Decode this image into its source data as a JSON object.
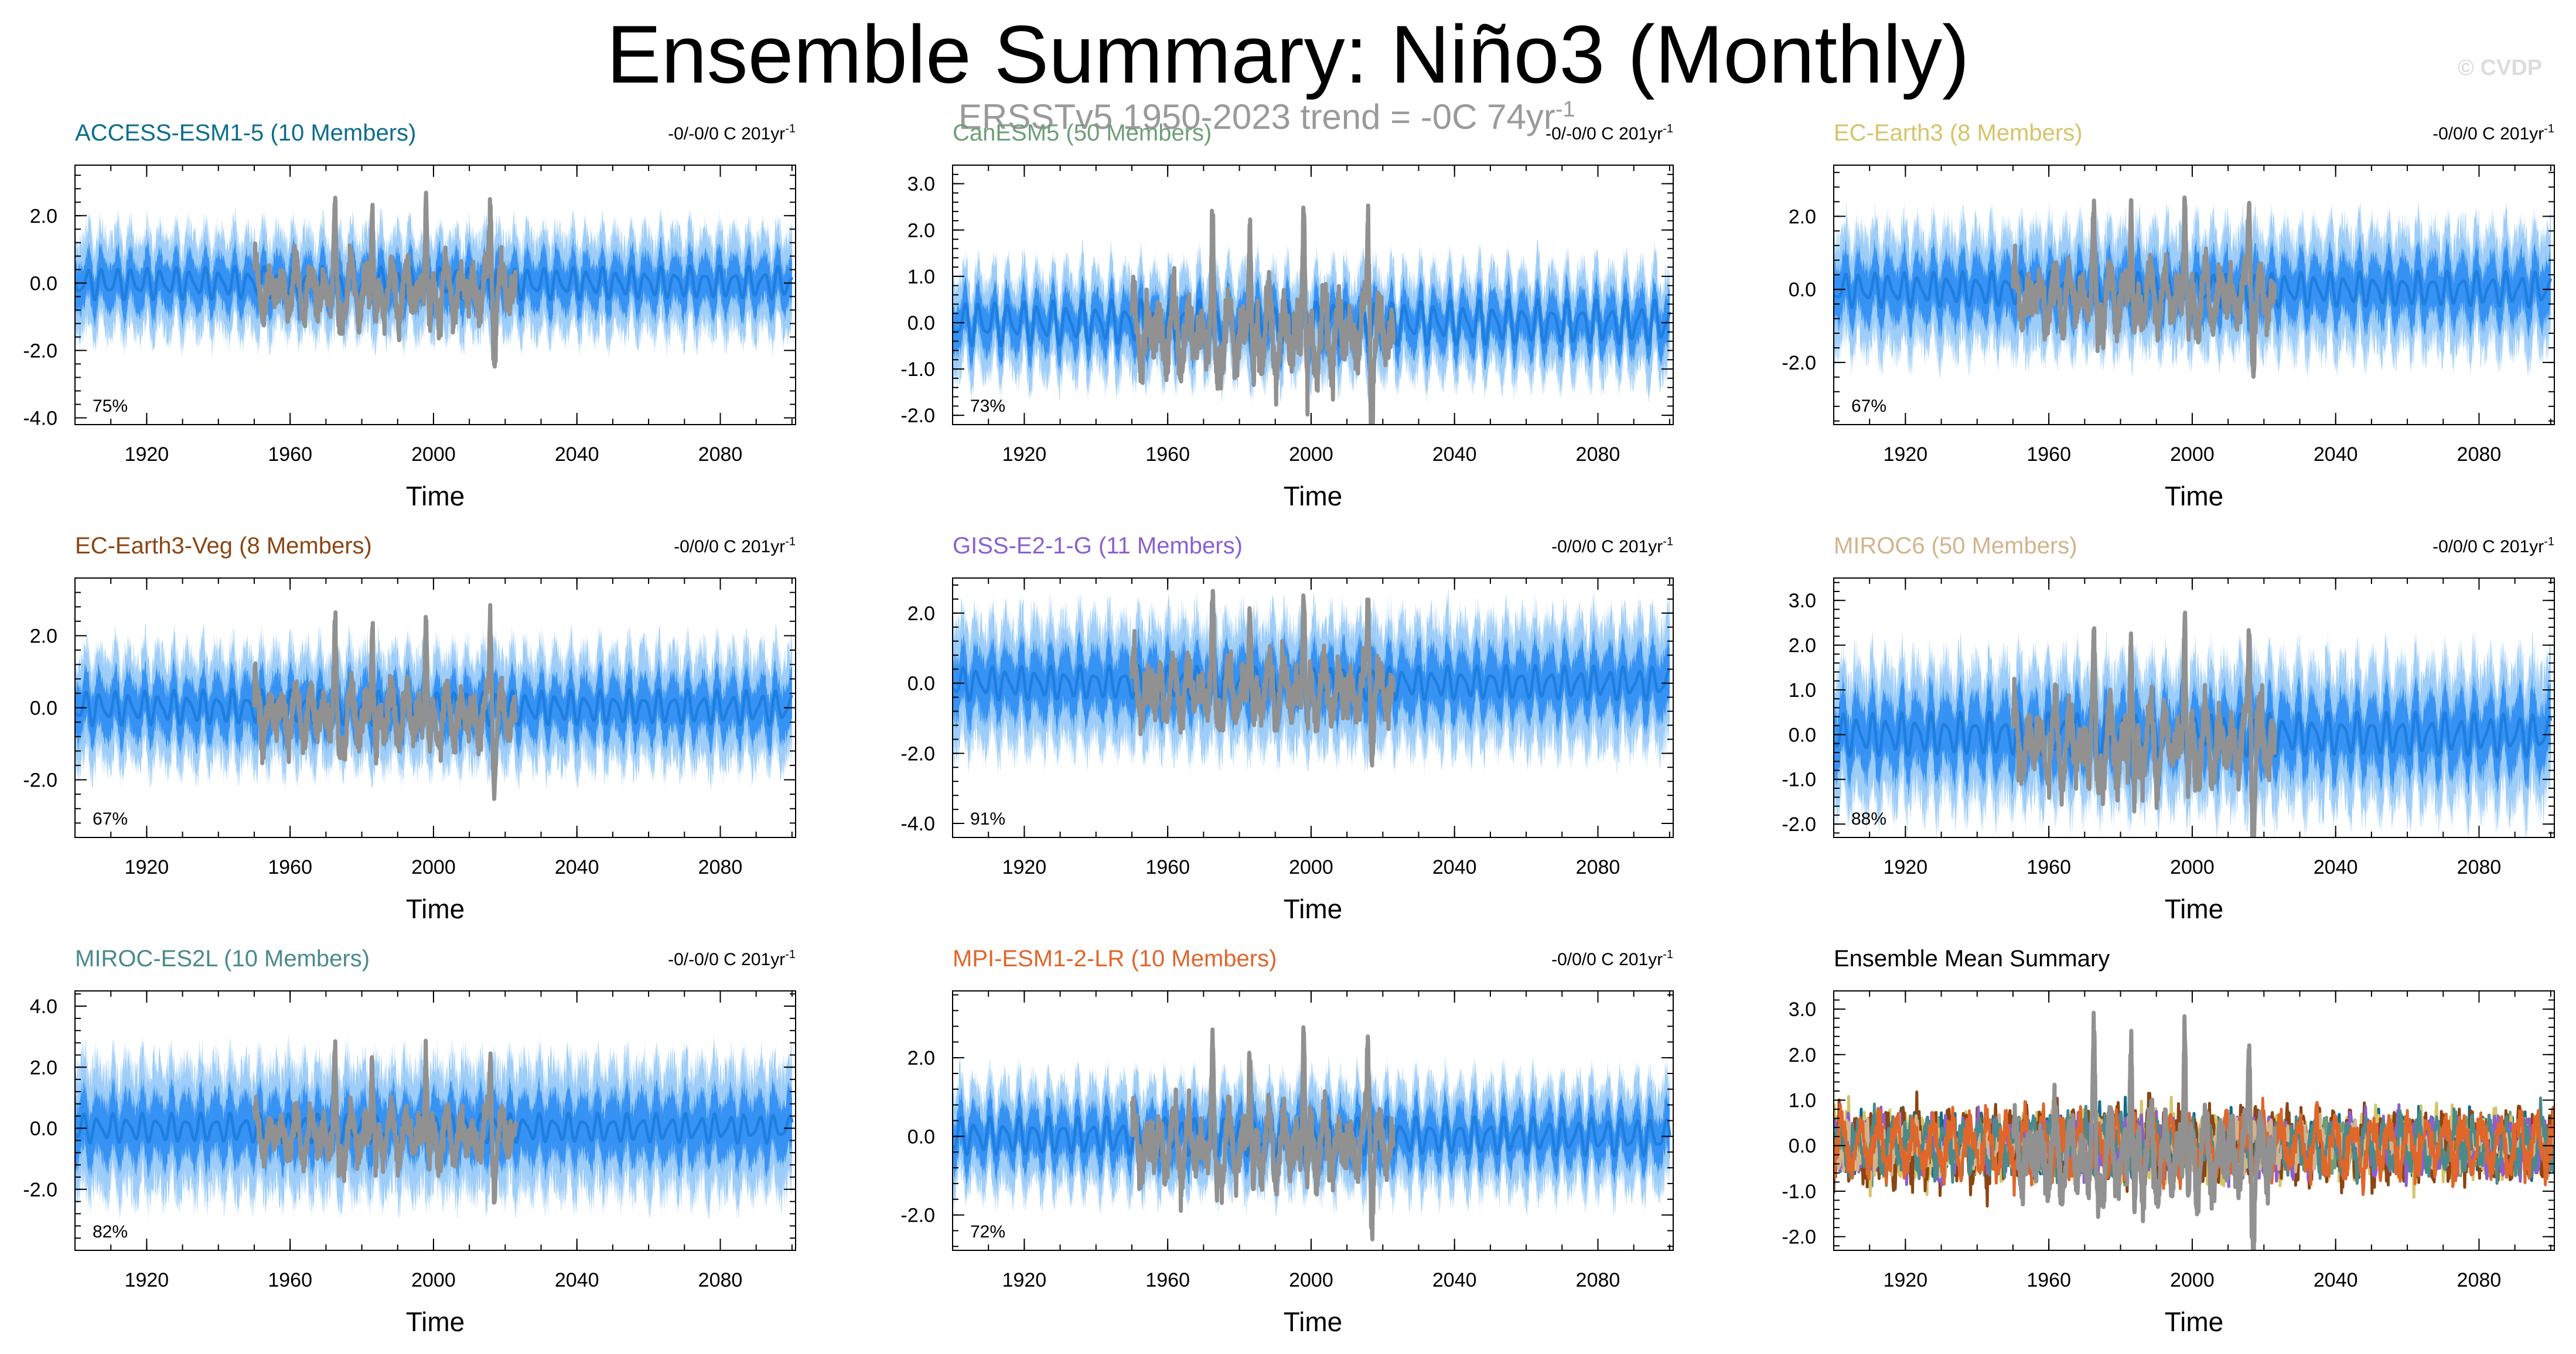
{
  "header": {
    "title": "Ensemble Summary: Niño3 (Monthly)",
    "subtitle_text": "ERSSTv5 1950-2023 trend = -0C 74yr",
    "subtitle_sup": "-1",
    "copyright": "© CVDP"
  },
  "colors": {
    "ensemble_spread": "#2b8cf2",
    "ensemble_spread_light": "#8cc4f7",
    "observations": "#919191",
    "axis": "#000000"
  },
  "chart_data": [
    {
      "type": "line",
      "title": "ACCESS-ESM1-5 (10 Members)",
      "title_color": "#0b6e8c",
      "trend_label": "-0/-0/0 C 201yr",
      "trend_sup": "-1",
      "percent_label": "75%",
      "xlabel": "Time",
      "xlim": [
        1900,
        2101
      ],
      "ylim": [
        -4.2,
        3.5
      ],
      "yticks": [
        -4.0,
        -2.0,
        0.0,
        2.0
      ],
      "ytick_labels": [
        "-4.0",
        "-2.0",
        "0.0",
        "2.0"
      ],
      "xticks": [
        1920,
        1960,
        2000,
        2040,
        2080
      ],
      "xtick_labels": [
        "1920",
        "1960",
        "2000",
        "2040",
        "2080"
      ],
      "series": [
        {
          "name": "Ensemble spread",
          "x_range": [
            1900,
            2100
          ],
          "mean": 0.0,
          "spread_amplitude": 1.8
        },
        {
          "name": "ERSSTv5 observations",
          "x_range": [
            1950,
            2023
          ],
          "peaks": [
            {
              "x": 1972.5,
              "value": 2.4
            },
            {
              "x": 1982.9,
              "value": 2.9
            },
            {
              "x": 1997.9,
              "value": 3.3
            },
            {
              "x": 2015.9,
              "value": 2.9
            }
          ]
        }
      ]
    },
    {
      "type": "line",
      "title": "CanESM5 (50 Members)",
      "title_color": "#6e9e78",
      "trend_label": "-0/-0/0 C 201yr",
      "trend_sup": "-1",
      "percent_label": "73%",
      "xlabel": "Time",
      "xlim": [
        1900,
        2101
      ],
      "ylim": [
        -2.2,
        3.4
      ],
      "yticks": [
        -2.0,
        -1.0,
        0.0,
        1.0,
        2.0,
        3.0
      ],
      "ytick_labels": [
        "-2.0",
        "-1.0",
        "0.0",
        "1.0",
        "2.0",
        "3.0"
      ],
      "xticks": [
        1920,
        1960,
        2000,
        2040,
        2080
      ],
      "xtick_labels": [
        "1920",
        "1960",
        "2000",
        "2040",
        "2080"
      ],
      "series": [
        {
          "name": "Ensemble spread",
          "x_range": [
            1900,
            2100
          ],
          "mean": 0.0,
          "spread_amplitude": 1.3
        },
        {
          "name": "ERSSTv5 observations",
          "x_range": [
            1950,
            2023
          ],
          "peaks": [
            {
              "x": 1972.5,
              "value": 2.4
            },
            {
              "x": 1982.9,
              "value": 2.9
            },
            {
              "x": 1997.9,
              "value": 3.3
            },
            {
              "x": 2015.9,
              "value": 2.9
            }
          ]
        }
      ]
    },
    {
      "type": "line",
      "title": "EC-Earth3 (8 Members)",
      "title_color": "#d6c46a",
      "trend_label": "-0/0/0 C 201yr",
      "trend_sup": "-1",
      "percent_label": "67%",
      "xlabel": "Time",
      "xlim": [
        1900,
        2101
      ],
      "ylim": [
        -3.7,
        3.4
      ],
      "yticks": [
        -2.0,
        0.0,
        2.0
      ],
      "ytick_labels": [
        "-2.0",
        "0.0",
        "2.0"
      ],
      "xticks": [
        1920,
        1960,
        2000,
        2040,
        2080
      ],
      "xtick_labels": [
        "1920",
        "1960",
        "2000",
        "2040",
        "2080"
      ],
      "series": [
        {
          "name": "Ensemble spread",
          "x_range": [
            1900,
            2100
          ],
          "mean": 0.0,
          "spread_amplitude": 2.0
        },
        {
          "name": "ERSSTv5 observations",
          "x_range": [
            1950,
            2023
          ],
          "peaks": [
            {
              "x": 1972.5,
              "value": 2.4
            },
            {
              "x": 1982.9,
              "value": 2.9
            },
            {
              "x": 1997.9,
              "value": 3.3
            },
            {
              "x": 2015.9,
              "value": 2.9
            }
          ]
        }
      ]
    },
    {
      "type": "line",
      "title": "EC-Earth3-Veg (8 Members)",
      "title_color": "#8b4513",
      "trend_label": "-0/0/0 C 201yr",
      "trend_sup": "-1",
      "percent_label": "67%",
      "xlabel": "Time",
      "xlim": [
        1900,
        2101
      ],
      "ylim": [
        -3.6,
        3.6
      ],
      "yticks": [
        -2.0,
        0.0,
        2.0
      ],
      "ytick_labels": [
        "-2.0",
        "0.0",
        "2.0"
      ],
      "xticks": [
        1920,
        1960,
        2000,
        2040,
        2080
      ],
      "xtick_labels": [
        "1920",
        "1960",
        "2000",
        "2040",
        "2080"
      ],
      "series": [
        {
          "name": "Ensemble spread",
          "x_range": [
            1900,
            2100
          ],
          "mean": 0.0,
          "spread_amplitude": 1.9
        },
        {
          "name": "ERSSTv5 observations",
          "x_range": [
            1950,
            2023
          ],
          "peaks": [
            {
              "x": 1972.5,
              "value": 2.4
            },
            {
              "x": 1982.9,
              "value": 2.9
            },
            {
              "x": 1997.9,
              "value": 3.3
            },
            {
              "x": 2015.9,
              "value": 2.9
            }
          ]
        }
      ]
    },
    {
      "type": "line",
      "title": "GISS-E2-1-G (11 Members)",
      "title_color": "#8a5fd1",
      "trend_label": "-0/0/0 C 201yr",
      "trend_sup": "-1",
      "percent_label": "91%",
      "xlabel": "Time",
      "xlim": [
        1900,
        2101
      ],
      "ylim": [
        -4.4,
        3.0
      ],
      "yticks": [
        -4.0,
        -2.0,
        0.0,
        2.0
      ],
      "ytick_labels": [
        "-4.0",
        "-2.0",
        "0.0",
        "2.0"
      ],
      "xticks": [
        1920,
        1960,
        2000,
        2040,
        2080
      ],
      "xtick_labels": [
        "1920",
        "1960",
        "2000",
        "2040",
        "2080"
      ],
      "series": [
        {
          "name": "Ensemble spread",
          "x_range": [
            1900,
            2100
          ],
          "mean": 0.0,
          "spread_amplitude": 2.2
        },
        {
          "name": "ERSSTv5 observations",
          "x_range": [
            1950,
            2023
          ],
          "peaks": [
            {
              "x": 1972.5,
              "value": 2.4
            },
            {
              "x": 1982.9,
              "value": 2.9
            },
            {
              "x": 1997.9,
              "value": 3.3
            },
            {
              "x": 2015.9,
              "value": 2.9
            }
          ]
        }
      ]
    },
    {
      "type": "line",
      "title": "MIROC6 (50 Members)",
      "title_color": "#d2b48c",
      "trend_label": "-0/0/0 C 201yr",
      "trend_sup": "-1",
      "percent_label": "88%",
      "xlabel": "Time",
      "xlim": [
        1900,
        2101
      ],
      "ylim": [
        -2.3,
        3.5
      ],
      "yticks": [
        -2.0,
        -1.0,
        0.0,
        1.0,
        2.0,
        3.0
      ],
      "ytick_labels": [
        "-2.0",
        "-1.0",
        "0.0",
        "1.0",
        "2.0",
        "3.0"
      ],
      "xticks": [
        1920,
        1960,
        2000,
        2040,
        2080
      ],
      "xtick_labels": [
        "1920",
        "1960",
        "2000",
        "2040",
        "2080"
      ],
      "series": [
        {
          "name": "Ensemble spread",
          "x_range": [
            1900,
            2100
          ],
          "mean": 0.0,
          "spread_amplitude": 1.9
        },
        {
          "name": "ERSSTv5 observations",
          "x_range": [
            1950,
            2023
          ],
          "peaks": [
            {
              "x": 1972.5,
              "value": 2.4
            },
            {
              "x": 1982.9,
              "value": 2.9
            },
            {
              "x": 1997.9,
              "value": 3.3
            },
            {
              "x": 2015.9,
              "value": 2.9
            }
          ]
        }
      ]
    },
    {
      "type": "line",
      "title": "MIROC-ES2L (10 Members)",
      "title_color": "#4a8a8c",
      "trend_label": "-0/-0/0 C 201yr",
      "trend_sup": "-1",
      "percent_label": "82%",
      "xlabel": "Time",
      "xlim": [
        1900,
        2101
      ],
      "ylim": [
        -4.0,
        4.5
      ],
      "yticks": [
        -2.0,
        0.0,
        2.0,
        4.0
      ],
      "ytick_labels": [
        "-2.0",
        "0.0",
        "2.0",
        "4.0"
      ],
      "xticks": [
        1920,
        1960,
        2000,
        2040,
        2080
      ],
      "xtick_labels": [
        "1920",
        "1960",
        "2000",
        "2040",
        "2080"
      ],
      "series": [
        {
          "name": "Ensemble spread",
          "x_range": [
            1900,
            2100
          ],
          "mean": 0.0,
          "spread_amplitude": 2.6
        },
        {
          "name": "ERSSTv5 observations",
          "x_range": [
            1950,
            2023
          ],
          "peaks": [
            {
              "x": 1972.5,
              "value": 2.4
            },
            {
              "x": 1982.9,
              "value": 2.9
            },
            {
              "x": 1997.9,
              "value": 3.3
            },
            {
              "x": 2015.9,
              "value": 2.9
            }
          ]
        }
      ]
    },
    {
      "type": "line",
      "title": "MPI-ESM1-2-LR (10 Members)",
      "title_color": "#e0662a",
      "trend_label": "-0/0/0 C 201yr",
      "trend_sup": "-1",
      "percent_label": "72%",
      "xlabel": "Time",
      "xlim": [
        1900,
        2101
      ],
      "ylim": [
        -2.9,
        3.7
      ],
      "yticks": [
        -2.0,
        0.0,
        2.0
      ],
      "ytick_labels": [
        "-2.0",
        "0.0",
        "2.0"
      ],
      "xticks": [
        1920,
        1960,
        2000,
        2040,
        2080
      ],
      "xtick_labels": [
        "1920",
        "1960",
        "2000",
        "2040",
        "2080"
      ],
      "series": [
        {
          "name": "Ensemble spread",
          "x_range": [
            1900,
            2100
          ],
          "mean": 0.0,
          "spread_amplitude": 1.6
        },
        {
          "name": "ERSSTv5 observations",
          "x_range": [
            1950,
            2023
          ],
          "peaks": [
            {
              "x": 1972.5,
              "value": 2.4
            },
            {
              "x": 1982.9,
              "value": 2.9
            },
            {
              "x": 1997.9,
              "value": 3.3
            },
            {
              "x": 2015.9,
              "value": 2.9
            }
          ]
        }
      ]
    },
    {
      "type": "line",
      "title": "Ensemble Mean Summary",
      "title_color": "#000000",
      "xlabel": "Time",
      "xlim": [
        1900,
        2101
      ],
      "ylim": [
        -2.3,
        3.4
      ],
      "yticks": [
        -2.0,
        -1.0,
        0.0,
        1.0,
        2.0,
        3.0
      ],
      "ytick_labels": [
        "-2.0",
        "-1.0",
        "0.0",
        "1.0",
        "2.0",
        "3.0"
      ],
      "xticks": [
        1920,
        1960,
        2000,
        2040,
        2080
      ],
      "xtick_labels": [
        "1920",
        "1960",
        "2000",
        "2040",
        "2080"
      ],
      "series": [
        {
          "name": "ERSSTv5 observations",
          "color": "#919191",
          "x_range": [
            1950,
            2023
          ],
          "peaks": [
            {
              "x": 1972.5,
              "value": 2.4
            },
            {
              "x": 1982.9,
              "value": 2.9
            },
            {
              "x": 1997.9,
              "value": 3.3
            },
            {
              "x": 2015.9,
              "value": 2.9
            }
          ]
        },
        {
          "name": "ACCESS-ESM1-5",
          "color": "#0b6e8c",
          "x_range": [
            1900,
            2100
          ],
          "amplitude": 0.6
        },
        {
          "name": "CanESM5",
          "color": "#6e9e78",
          "x_range": [
            1900,
            2100
          ],
          "amplitude": 0.5
        },
        {
          "name": "EC-Earth3",
          "color": "#d6c46a",
          "x_range": [
            1900,
            2100
          ],
          "amplitude": 0.7
        },
        {
          "name": "EC-Earth3-Veg",
          "color": "#8b4513",
          "x_range": [
            1900,
            2100
          ],
          "amplitude": 0.8
        },
        {
          "name": "GISS-E2-1-G",
          "color": "#8a5fd1",
          "x_range": [
            1900,
            2100
          ],
          "amplitude": 0.6
        },
        {
          "name": "MIROC6",
          "color": "#d2b48c",
          "x_range": [
            1900,
            2100
          ],
          "amplitude": 0.5
        },
        {
          "name": "MIROC-ES2L",
          "color": "#4a8a8c",
          "x_range": [
            1900,
            2100
          ],
          "amplitude": 0.6
        },
        {
          "name": "MPI-ESM1-2-LR",
          "color": "#e0662a",
          "x_range": [
            1900,
            2100
          ],
          "amplitude": 0.7
        }
      ]
    }
  ]
}
